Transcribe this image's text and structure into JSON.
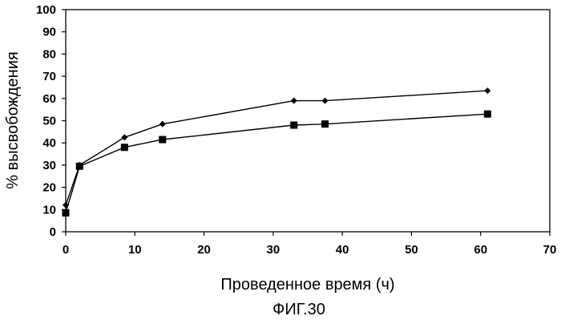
{
  "chart_data": {
    "type": "line",
    "title": "",
    "caption": "ФИГ.30",
    "xlabel": "Проведенное время (ч)",
    "ylabel": "% высвобождения",
    "xlim": [
      0,
      70
    ],
    "ylim": [
      0,
      100
    ],
    "xticks": [
      0,
      10,
      20,
      30,
      40,
      50,
      60,
      70
    ],
    "yticks": [
      0,
      10,
      20,
      30,
      40,
      50,
      60,
      70,
      80,
      90,
      100
    ],
    "grid": false,
    "legend": "none",
    "series": [
      {
        "name": "series-diamond",
        "marker": "diamond",
        "x": [
          0,
          2,
          8.5,
          14,
          33,
          37.5,
          61
        ],
        "y": [
          12,
          30,
          42.5,
          48.5,
          59,
          59,
          63.5
        ]
      },
      {
        "name": "series-square",
        "marker": "square",
        "x": [
          0,
          2,
          8.5,
          14,
          33,
          37.5,
          61
        ],
        "y": [
          8.5,
          29.5,
          38,
          41.5,
          48,
          48.5,
          53
        ]
      }
    ]
  },
  "colors": {
    "line": "#000000",
    "marker": "#000000",
    "axis": "#000000"
  }
}
